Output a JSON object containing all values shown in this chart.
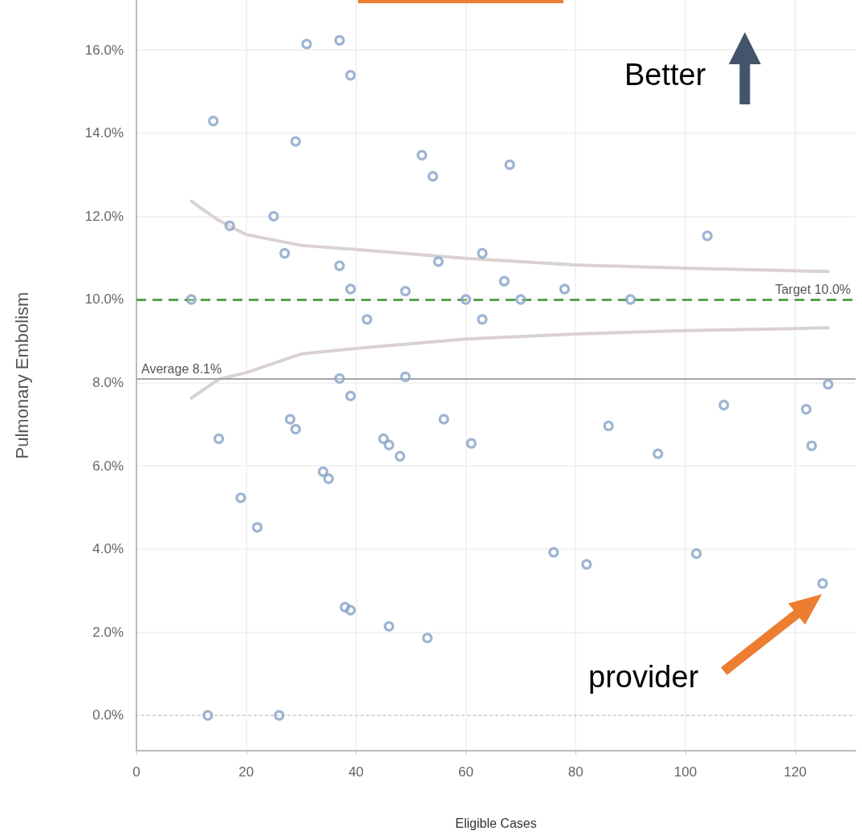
{
  "chart_data": {
    "type": "scatter",
    "xlabel": "Eligible Cases",
    "ylabel": "Pulmonary Embolism",
    "grid": true,
    "xlim": [
      0,
      131
    ],
    "xticks": [
      0,
      20,
      40,
      60,
      80,
      100,
      120
    ],
    "ylim": [
      -0.85,
      17.2
    ],
    "yticks": [
      {
        "value": 0,
        "label": "0.0%"
      },
      {
        "value": 2,
        "label": "2.0%"
      },
      {
        "value": 4,
        "label": "4.0%"
      },
      {
        "value": 6,
        "label": "6.0%"
      },
      {
        "value": 8,
        "label": "8.0%"
      },
      {
        "value": 10,
        "label": "10.0%"
      },
      {
        "value": 12,
        "label": "12.0%"
      },
      {
        "value": 14,
        "label": "14.0%"
      },
      {
        "value": 16,
        "label": "16.0%"
      }
    ],
    "series": [
      {
        "type": "line",
        "color": "#d9d2cf",
        "line_style": "solid",
        "marker": "none",
        "x": [
          10,
          15,
          20,
          30,
          40,
          60,
          80,
          100,
          120,
          126
        ],
        "values": [
          12.36,
          11.9,
          11.56,
          11.3,
          11.2,
          10.99,
          10.83,
          10.75,
          10.69,
          10.67
        ]
      },
      {
        "type": "line",
        "color": "#d9d2cf",
        "line_style": "solid",
        "marker": "none",
        "x": [
          10,
          15,
          20,
          30,
          40,
          60,
          80,
          100,
          120,
          126
        ],
        "values": [
          7.63,
          8.08,
          8.24,
          8.69,
          8.82,
          9.05,
          9.17,
          9.25,
          9.3,
          9.32
        ]
      },
      {
        "type": "scatter",
        "color": "#86a3c7",
        "marker": "circle",
        "x": [
          31,
          37,
          39,
          14,
          29,
          52,
          54,
          25,
          17,
          27,
          37,
          39,
          49,
          10,
          60,
          55,
          63,
          42,
          63,
          37,
          49,
          39,
          28,
          29,
          15,
          45,
          46,
          48,
          56,
          61,
          34,
          35,
          19,
          22,
          38,
          39,
          46,
          53,
          13,
          26,
          68,
          104,
          67,
          78,
          70,
          90,
          126,
          107,
          122,
          86,
          95,
          123,
          76,
          82,
          102,
          125
        ],
        "values": [
          16.14,
          16.23,
          15.39,
          14.29,
          13.8,
          13.47,
          12.96,
          12.0,
          11.77,
          11.11,
          10.81,
          10.25,
          10.2,
          10.0,
          10.0,
          10.91,
          11.11,
          9.52,
          9.52,
          8.1,
          8.14,
          7.68,
          7.12,
          6.88,
          6.65,
          6.65,
          6.5,
          6.23,
          7.12,
          6.54,
          5.86,
          5.69,
          5.23,
          4.52,
          2.6,
          2.53,
          2.14,
          1.86,
          0,
          0,
          13.24,
          11.53,
          10.44,
          10.25,
          10.0,
          10.0,
          7.96,
          7.46,
          7.36,
          6.96,
          6.29,
          6.48,
          3.92,
          3.63,
          3.89,
          3.17
        ]
      }
    ],
    "ref_lines": [
      {
        "axis": "y",
        "value": 8.1,
        "label": "Average 8.1%",
        "color": "#a6a6a6",
        "line_style": "solid"
      },
      {
        "axis": "y",
        "value": 10,
        "label": "Target 10.0%",
        "color": "#59a14f",
        "line_style": "dashed"
      },
      {
        "axis": "y",
        "value": 0,
        "color": "#c8c8c8",
        "line_style": "dotted"
      }
    ],
    "annotations": [
      "Better",
      "provider"
    ]
  }
}
